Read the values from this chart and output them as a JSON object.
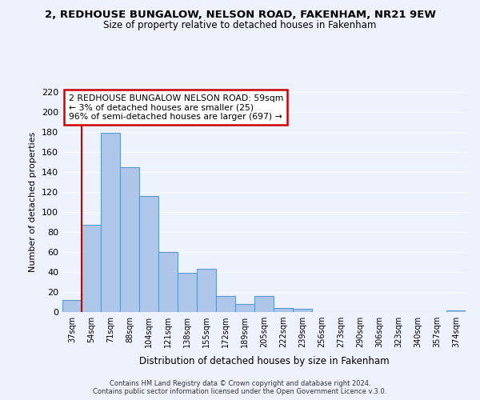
{
  "title": "2, REDHOUSE BUNGALOW, NELSON ROAD, FAKENHAM, NR21 9EW",
  "subtitle": "Size of property relative to detached houses in Fakenham",
  "xlabel": "Distribution of detached houses by size in Fakenham",
  "ylabel": "Number of detached properties",
  "bar_labels": [
    "37sqm",
    "54sqm",
    "71sqm",
    "88sqm",
    "104sqm",
    "121sqm",
    "138sqm",
    "155sqm",
    "172sqm",
    "189sqm",
    "205sqm",
    "222sqm",
    "239sqm",
    "256sqm",
    "273sqm",
    "290sqm",
    "306sqm",
    "323sqm",
    "340sqm",
    "357sqm",
    "374sqm"
  ],
  "bar_heights": [
    12,
    87,
    179,
    145,
    116,
    60,
    39,
    43,
    16,
    8,
    16,
    4,
    3,
    0,
    0,
    0,
    0,
    0,
    0,
    0,
    2
  ],
  "bar_color": "#aec6e8",
  "bar_edge_color": "#5b9bd5",
  "vline_color": "#cc0000",
  "ylim": [
    0,
    220
  ],
  "yticks": [
    0,
    20,
    40,
    60,
    80,
    100,
    120,
    140,
    160,
    180,
    200,
    220
  ],
  "annotation_title": "2 REDHOUSE BUNGALOW NELSON ROAD: 59sqm",
  "annotation_line1": "← 3% of detached houses are smaller (25)",
  "annotation_line2": "96% of semi-detached houses are larger (697) →",
  "annotation_box_color": "#ffffff",
  "annotation_box_edge": "#cc0000",
  "footer1": "Contains HM Land Registry data © Crown copyright and database right 2024.",
  "footer2": "Contains public sector information licensed under the Open Government Licence v.3.0.",
  "bg_color": "#eef2fc",
  "grid_color": "#ffffff"
}
